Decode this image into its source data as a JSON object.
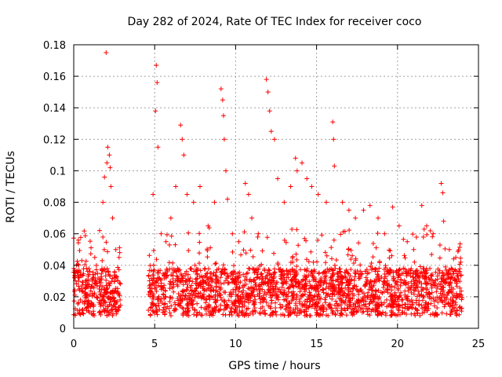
{
  "chart_data": {
    "type": "scatter",
    "title": "Day 282 of 2024, Rate Of TEC Index for receiver coco",
    "xlabel": "GPS time / hours",
    "ylabel": "ROTI / TECUs",
    "xlim": [
      0,
      25
    ],
    "ylim": [
      0,
      0.18
    ],
    "xticks": [
      0,
      5,
      10,
      15,
      20,
      25
    ],
    "xtick_labels": [
      "0",
      "5",
      "10",
      "15",
      "20",
      "25"
    ],
    "yticks": [
      0,
      0.02,
      0.04,
      0.06,
      0.08,
      0.1,
      0.12,
      0.14,
      0.16,
      0.18
    ],
    "ytick_labels": [
      "0",
      "0.02",
      "0.04",
      "0.06",
      "0.08",
      "0.1",
      "0.12",
      "0.14",
      "0.16",
      "0.18"
    ],
    "grid": true,
    "marker": "+",
    "color": "#ff0000",
    "series": [
      {
        "points": [
          [
            0.1,
            0.035
          ],
          [
            0.3,
            0.04
          ],
          [
            0.5,
            0.043
          ],
          [
            0.8,
            0.038
          ],
          [
            1.0,
            0.036
          ],
          [
            1.3,
            0.045
          ],
          [
            1.6,
            0.062
          ],
          [
            1.8,
            0.08
          ],
          [
            1.9,
            0.096
          ],
          [
            2.0,
            0.175
          ],
          [
            2.05,
            0.105
          ],
          [
            2.1,
            0.115
          ],
          [
            2.2,
            0.11
          ],
          [
            2.25,
            0.102
          ],
          [
            2.3,
            0.09
          ],
          [
            2.4,
            0.07
          ],
          [
            2.6,
            0.05
          ],
          [
            2.8,
            0.045
          ],
          [
            4.9,
            0.085
          ],
          [
            5.05,
            0.138
          ],
          [
            5.1,
            0.167
          ],
          [
            5.15,
            0.156
          ],
          [
            5.2,
            0.115
          ],
          [
            5.4,
            0.06
          ],
          [
            5.7,
            0.055
          ],
          [
            6.0,
            0.07
          ],
          [
            6.3,
            0.09
          ],
          [
            6.6,
            0.129
          ],
          [
            6.7,
            0.12
          ],
          [
            6.8,
            0.11
          ],
          [
            7.0,
            0.085
          ],
          [
            7.4,
            0.08
          ],
          [
            7.8,
            0.09
          ],
          [
            8.3,
            0.065
          ],
          [
            8.7,
            0.08
          ],
          [
            9.1,
            0.152
          ],
          [
            9.2,
            0.145
          ],
          [
            9.25,
            0.135
          ],
          [
            9.3,
            0.12
          ],
          [
            9.4,
            0.1
          ],
          [
            9.5,
            0.082
          ],
          [
            9.8,
            0.06
          ],
          [
            10.2,
            0.055
          ],
          [
            10.6,
            0.092
          ],
          [
            10.8,
            0.085
          ],
          [
            11.0,
            0.07
          ],
          [
            11.4,
            0.06
          ],
          [
            11.9,
            0.158
          ],
          [
            12.0,
            0.15
          ],
          [
            12.1,
            0.138
          ],
          [
            12.2,
            0.125
          ],
          [
            12.4,
            0.12
          ],
          [
            12.6,
            0.095
          ],
          [
            13.0,
            0.08
          ],
          [
            13.4,
            0.09
          ],
          [
            13.7,
            0.108
          ],
          [
            13.8,
            0.1
          ],
          [
            14.1,
            0.105
          ],
          [
            14.4,
            0.095
          ],
          [
            14.7,
            0.09
          ],
          [
            15.1,
            0.085
          ],
          [
            15.6,
            0.08
          ],
          [
            16.0,
            0.131
          ],
          [
            16.05,
            0.12
          ],
          [
            16.1,
            0.103
          ],
          [
            16.6,
            0.08
          ],
          [
            17.0,
            0.075
          ],
          [
            17.4,
            0.07
          ],
          [
            17.9,
            0.075
          ],
          [
            18.3,
            0.078
          ],
          [
            18.8,
            0.07
          ],
          [
            19.2,
            0.06
          ],
          [
            19.7,
            0.077
          ],
          [
            20.1,
            0.065
          ],
          [
            20.6,
            0.055
          ],
          [
            21.0,
            0.05
          ],
          [
            21.5,
            0.078
          ],
          [
            21.8,
            0.065
          ],
          [
            22.2,
            0.06
          ],
          [
            22.7,
            0.092
          ],
          [
            22.8,
            0.086
          ],
          [
            22.85,
            0.068
          ],
          [
            23.2,
            0.05
          ],
          [
            23.6,
            0.045
          ],
          [
            23.9,
            0.042
          ]
        ]
      }
    ]
  }
}
